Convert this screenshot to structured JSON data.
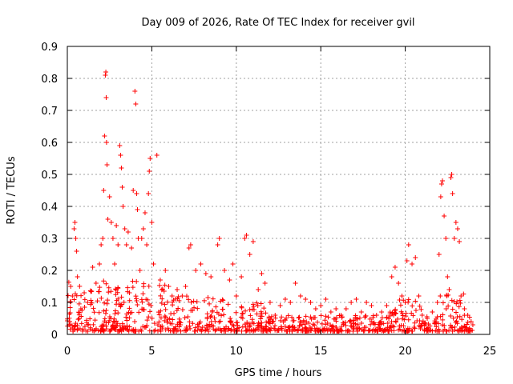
{
  "chart_data": {
    "type": "scatter",
    "title": "Day 009 of 2026, Rate Of TEC Index for receiver gvil",
    "xlabel": "GPS time / hours",
    "ylabel": "ROTI / TECUs",
    "xlim": [
      0,
      25
    ],
    "ylim": [
      0,
      0.9
    ],
    "xticks": [
      0,
      5,
      10,
      15,
      20,
      25
    ],
    "yticks": [
      0,
      0.1,
      0.2,
      0.3,
      0.4,
      0.5,
      0.6,
      0.7,
      0.8,
      0.9
    ],
    "xtick_labels": [
      "0",
      "5",
      "10",
      "15",
      "20",
      "25"
    ],
    "ytick_labels": [
      "0",
      "0.1",
      "0.2",
      "0.3",
      "0.4",
      "0.5",
      "0.6",
      "0.7",
      "0.8",
      "0.9"
    ],
    "grid": true,
    "marker": "+",
    "color": "#ff0000",
    "series": [
      {
        "name": "ROTI",
        "points": [
          [
            0.1,
            0.03
          ],
          [
            0.2,
            0.15
          ],
          [
            0.3,
            0.12
          ],
          [
            0.4,
            0.33
          ],
          [
            0.45,
            0.35
          ],
          [
            0.5,
            0.3
          ],
          [
            0.55,
            0.26
          ],
          [
            0.6,
            0.18
          ],
          [
            0.8,
            0.08
          ],
          [
            1.0,
            0.13
          ],
          [
            1.2,
            0.1
          ],
          [
            1.5,
            0.21
          ],
          [
            1.7,
            0.16
          ],
          [
            1.9,
            0.22
          ],
          [
            2.0,
            0.28
          ],
          [
            2.1,
            0.3
          ],
          [
            2.15,
            0.45
          ],
          [
            2.2,
            0.62
          ],
          [
            2.25,
            0.81
          ],
          [
            2.28,
            0.82
          ],
          [
            2.3,
            0.74
          ],
          [
            2.32,
            0.6
          ],
          [
            2.35,
            0.53
          ],
          [
            2.4,
            0.36
          ],
          [
            2.5,
            0.43
          ],
          [
            2.6,
            0.35
          ],
          [
            2.7,
            0.3
          ],
          [
            2.8,
            0.22
          ],
          [
            2.9,
            0.34
          ],
          [
            3.0,
            0.28
          ],
          [
            3.1,
            0.59
          ],
          [
            3.15,
            0.56
          ],
          [
            3.2,
            0.52
          ],
          [
            3.25,
            0.46
          ],
          [
            3.3,
            0.4
          ],
          [
            3.4,
            0.33
          ],
          [
            3.5,
            0.28
          ],
          [
            3.6,
            0.32
          ],
          [
            3.8,
            0.27
          ],
          [
            3.9,
            0.45
          ],
          [
            4.0,
            0.76
          ],
          [
            4.05,
            0.72
          ],
          [
            4.1,
            0.44
          ],
          [
            4.15,
            0.39
          ],
          [
            4.2,
            0.3
          ],
          [
            4.3,
            0.2
          ],
          [
            4.4,
            0.3
          ],
          [
            4.5,
            0.33
          ],
          [
            4.6,
            0.38
          ],
          [
            4.7,
            0.28
          ],
          [
            4.8,
            0.44
          ],
          [
            4.85,
            0.51
          ],
          [
            4.9,
            0.55
          ],
          [
            5.0,
            0.35
          ],
          [
            5.1,
            0.22
          ],
          [
            5.3,
            0.56
          ],
          [
            5.5,
            0.17
          ],
          [
            5.8,
            0.2
          ],
          [
            6.0,
            0.15
          ],
          [
            6.2,
            0.12
          ],
          [
            6.5,
            0.14
          ],
          [
            6.8,
            0.12
          ],
          [
            7.0,
            0.15
          ],
          [
            7.2,
            0.27
          ],
          [
            7.3,
            0.28
          ],
          [
            7.6,
            0.2
          ],
          [
            7.9,
            0.22
          ],
          [
            8.2,
            0.19
          ],
          [
            8.5,
            0.18
          ],
          [
            8.9,
            0.28
          ],
          [
            9.0,
            0.3
          ],
          [
            9.3,
            0.2
          ],
          [
            9.6,
            0.17
          ],
          [
            9.8,
            0.22
          ],
          [
            10.0,
            0.12
          ],
          [
            10.3,
            0.18
          ],
          [
            10.5,
            0.3
          ],
          [
            10.6,
            0.31
          ],
          [
            10.8,
            0.25
          ],
          [
            11.0,
            0.29
          ],
          [
            11.3,
            0.14
          ],
          [
            11.5,
            0.19
          ],
          [
            11.7,
            0.16
          ],
          [
            12.0,
            0.1
          ],
          [
            12.3,
            0.06
          ],
          [
            12.6,
            0.09
          ],
          [
            12.9,
            0.11
          ],
          [
            13.2,
            0.1
          ],
          [
            13.5,
            0.16
          ],
          [
            13.8,
            0.12
          ],
          [
            14.1,
            0.11
          ],
          [
            14.4,
            0.1
          ],
          [
            14.7,
            0.08
          ],
          [
            15.0,
            0.09
          ],
          [
            15.3,
            0.11
          ],
          [
            15.6,
            0.07
          ],
          [
            15.9,
            0.08
          ],
          [
            16.2,
            0.06
          ],
          [
            16.5,
            0.08
          ],
          [
            16.8,
            0.1
          ],
          [
            17.1,
            0.11
          ],
          [
            17.4,
            0.07
          ],
          [
            17.7,
            0.1
          ],
          [
            18.0,
            0.09
          ],
          [
            18.3,
            0.06
          ],
          [
            18.6,
            0.07
          ],
          [
            18.9,
            0.09
          ],
          [
            19.2,
            0.18
          ],
          [
            19.4,
            0.21
          ],
          [
            19.6,
            0.16
          ],
          [
            19.8,
            0.12
          ],
          [
            20.0,
            0.1
          ],
          [
            20.1,
            0.23
          ],
          [
            20.2,
            0.28
          ],
          [
            20.4,
            0.22
          ],
          [
            20.6,
            0.24
          ],
          [
            20.8,
            0.12
          ],
          [
            21.0,
            0.06
          ],
          [
            21.3,
            0.05
          ],
          [
            21.6,
            0.07
          ],
          [
            21.9,
            0.1
          ],
          [
            22.0,
            0.25
          ],
          [
            22.1,
            0.43
          ],
          [
            22.15,
            0.47
          ],
          [
            22.2,
            0.48
          ],
          [
            22.3,
            0.37
          ],
          [
            22.4,
            0.3
          ],
          [
            22.5,
            0.18
          ],
          [
            22.6,
            0.14
          ],
          [
            22.7,
            0.49
          ],
          [
            22.75,
            0.5
          ],
          [
            22.8,
            0.44
          ],
          [
            22.9,
            0.3
          ],
          [
            23.0,
            0.35
          ],
          [
            23.1,
            0.33
          ],
          [
            23.2,
            0.29
          ],
          [
            23.3,
            0.12
          ],
          [
            23.5,
            0.08
          ],
          [
            23.7,
            0.06
          ],
          [
            23.9,
            0.04
          ],
          [
            24.0,
            0.03
          ]
        ]
      }
    ]
  }
}
